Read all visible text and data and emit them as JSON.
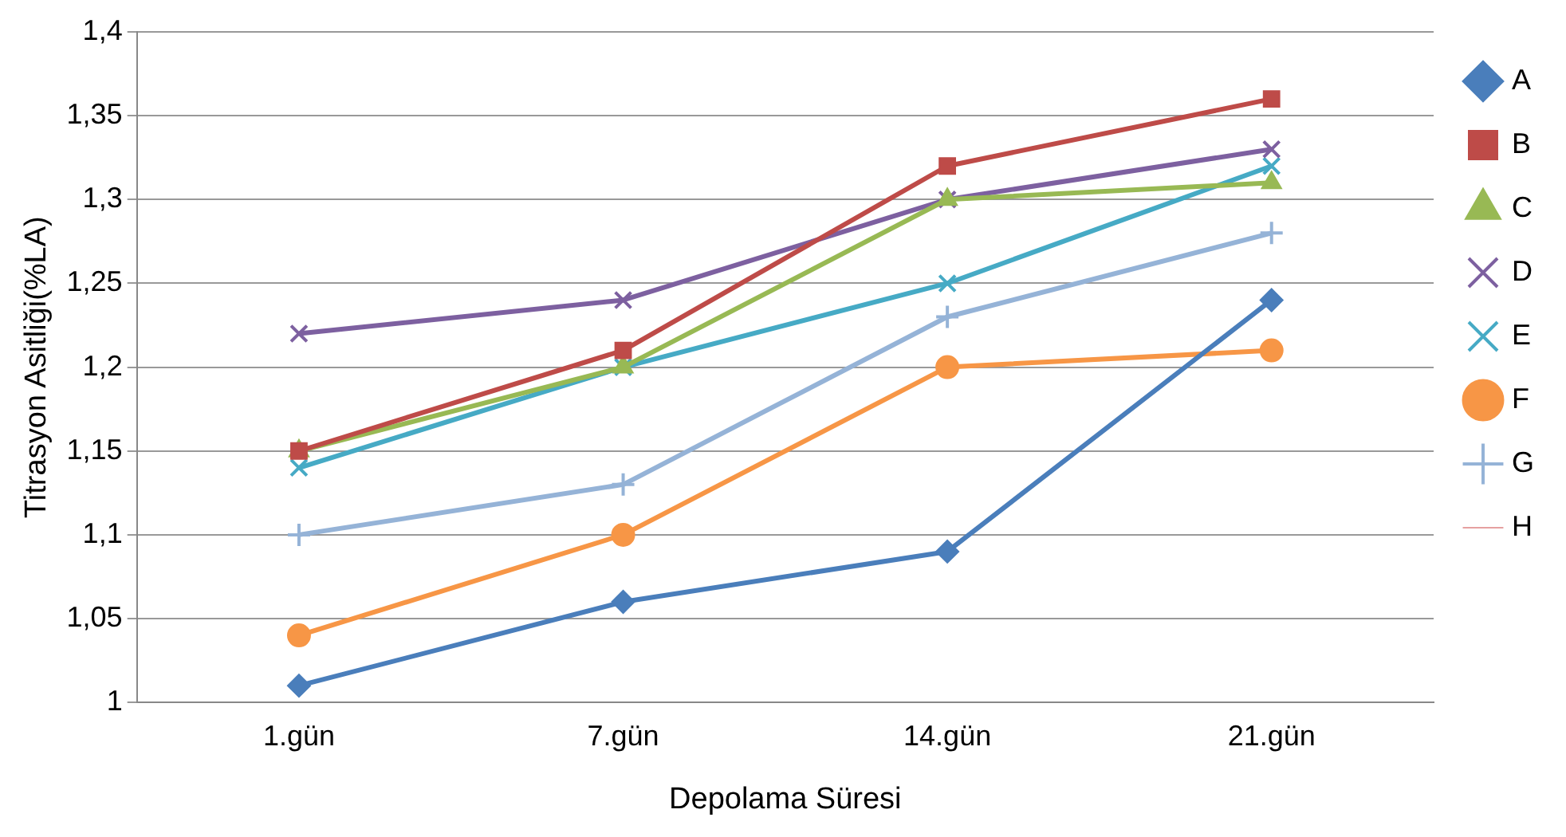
{
  "chart_data": {
    "type": "line",
    "xlabel": "Depolama Süresi",
    "ylabel": "Titrasyon Asitliği(%LA)",
    "categories": [
      "1.gün",
      "7.gün",
      "14.gün",
      "21.gün"
    ],
    "series": [
      {
        "name": "A",
        "color": "#4a7ebb",
        "marker": "diamond",
        "values": [
          1.01,
          1.06,
          1.09,
          1.24
        ]
      },
      {
        "name": "B",
        "color": "#be4b48",
        "marker": "square",
        "values": [
          1.15,
          1.21,
          1.32,
          1.36
        ]
      },
      {
        "name": "C",
        "color": "#98b954",
        "marker": "triangle",
        "values": [
          1.15,
          1.2,
          1.3,
          1.31
        ]
      },
      {
        "name": "D",
        "color": "#7d60a0",
        "marker": "cross",
        "values": [
          1.22,
          1.24,
          1.3,
          1.33
        ]
      },
      {
        "name": "E",
        "color": "#46aac5",
        "marker": "cross",
        "values": [
          1.14,
          1.2,
          1.25,
          1.32
        ]
      },
      {
        "name": "F",
        "color": "#f79646",
        "marker": "circle",
        "values": [
          1.04,
          1.1,
          1.2,
          1.21
        ]
      },
      {
        "name": "G",
        "color": "#95b3d7",
        "marker": "plus",
        "values": [
          1.1,
          1.13,
          1.23,
          1.28
        ]
      },
      {
        "name": "H",
        "color": "#e6a0a0",
        "marker": "none",
        "values": [
          null,
          null,
          null,
          null
        ]
      }
    ],
    "ylim": [
      1,
      1.4
    ],
    "yticks": [
      1,
      {
        "value": 1.05,
        "label": "1,05"
      },
      {
        "value": 1.1,
        "label": "1,1"
      },
      {
        "value": 1.15,
        "label": "1,15"
      },
      {
        "value": 1.2,
        "label": "1,2"
      },
      {
        "value": 1.25,
        "label": "1,25"
      },
      {
        "value": 1.3,
        "label": "1,3"
      },
      {
        "value": 1.35,
        "label": "1,35"
      },
      {
        "value": 1.4,
        "label": "1,4"
      }
    ],
    "grid": "y",
    "legend": "right",
    "line_style": "solid"
  }
}
